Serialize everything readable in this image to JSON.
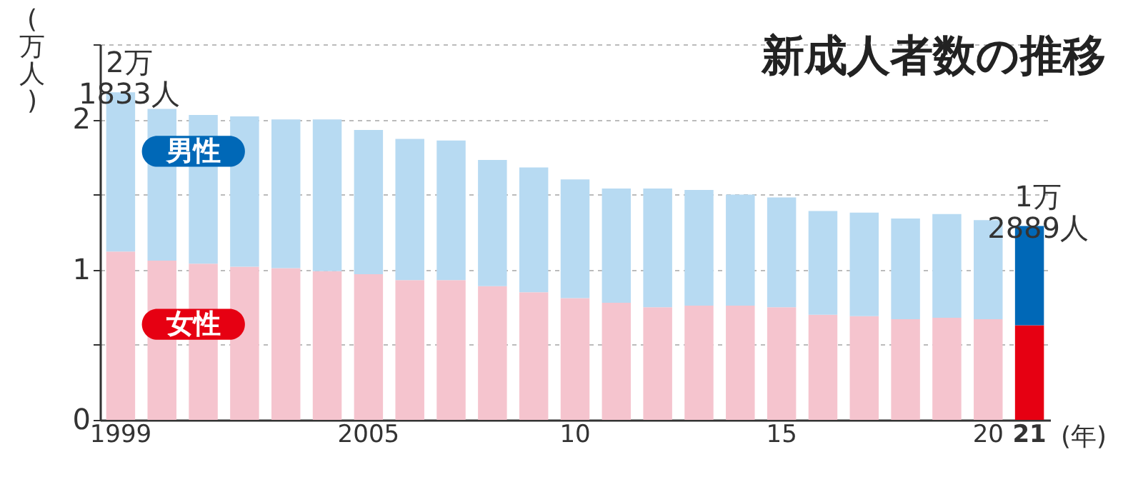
{
  "chart_data": {
    "type": "bar",
    "title": "新成人者数の推移",
    "xlabel": "(年)",
    "ylabel": "(万人)",
    "categories": [
      "1999",
      null,
      null,
      null,
      null,
      null,
      "2005",
      null,
      null,
      null,
      null,
      "10",
      null,
      null,
      null,
      null,
      "15",
      null,
      null,
      null,
      null,
      "20",
      "21"
    ],
    "stacked": true,
    "series": [
      {
        "name": "女性",
        "colors": [
          "#f5c4ce",
          "#f5c4ce",
          "#f5c4ce",
          "#f5c4ce",
          "#f5c4ce",
          "#f5c4ce",
          "#f5c4ce",
          "#f5c4ce",
          "#f5c4ce",
          "#f5c4ce",
          "#f5c4ce",
          "#f5c4ce",
          "#f5c4ce",
          "#f5c4ce",
          "#f5c4ce",
          "#f5c4ce",
          "#f5c4ce",
          "#f5c4ce",
          "#f5c4ce",
          "#f5c4ce",
          "#f5c4ce",
          "#f5c4ce",
          "#e60012"
        ],
        "values": [
          1.12,
          1.06,
          1.04,
          1.02,
          1.01,
          0.99,
          0.97,
          0.93,
          0.93,
          0.89,
          0.85,
          0.81,
          0.78,
          0.75,
          0.76,
          0.76,
          0.75,
          0.7,
          0.69,
          0.67,
          0.68,
          0.67,
          0.63
        ]
      },
      {
        "name": "男性",
        "colors": [
          "#b7daf2",
          "#b7daf2",
          "#b7daf2",
          "#b7daf2",
          "#b7daf2",
          "#b7daf2",
          "#b7daf2",
          "#b7daf2",
          "#b7daf2",
          "#b7daf2",
          "#b7daf2",
          "#b7daf2",
          "#b7daf2",
          "#b7daf2",
          "#b7daf2",
          "#b7daf2",
          "#b7daf2",
          "#b7daf2",
          "#b7daf2",
          "#b7daf2",
          "#b7daf2",
          "#b7daf2",
          "#0068b7"
        ],
        "values": [
          1.06,
          1.01,
          0.99,
          1.0,
          0.99,
          1.01,
          0.96,
          0.94,
          0.93,
          0.84,
          0.83,
          0.79,
          0.76,
          0.79,
          0.77,
          0.74,
          0.73,
          0.69,
          0.69,
          0.67,
          0.69,
          0.66,
          0.66
        ]
      }
    ],
    "ylim": [
      0,
      2.5
    ],
    "yticks": [
      0,
      {
        "value": 0.5,
        "label": null
      },
      1,
      {
        "value": 1.5,
        "label": null
      },
      2,
      {
        "value": 2.5,
        "label": null
      }
    ],
    "grid": "y",
    "annotations": [
      {
        "text": "2万\n1833人",
        "x": "1999",
        "y": 2.18
      },
      {
        "text": "1万\n2889人",
        "x": "21",
        "y": 1.29
      }
    ]
  }
}
